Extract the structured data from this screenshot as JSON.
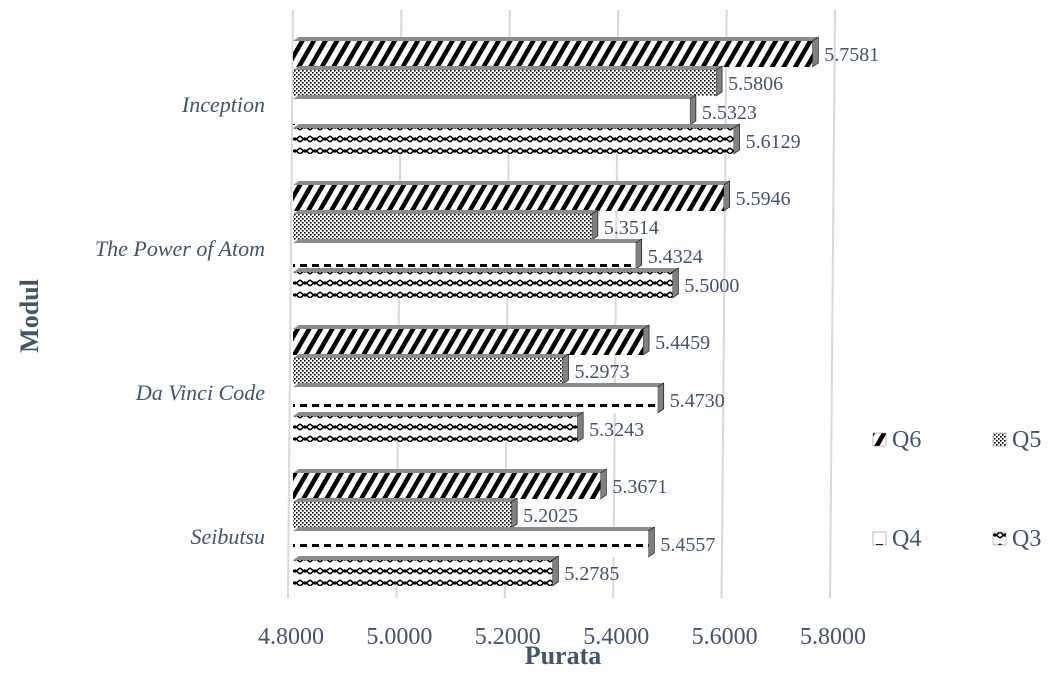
{
  "chart_data": {
    "type": "bar",
    "orientation": "horizontal",
    "categories": [
      "Inception",
      "The Power of Atom",
      "Da Vinci Code",
      "Seibutsu"
    ],
    "series": [
      {
        "name": "Q6",
        "values": [
          5.7581,
          5.5946,
          5.4459,
          5.3671
        ]
      },
      {
        "name": "Q5",
        "values": [
          5.5806,
          5.3514,
          5.2973,
          5.2025
        ]
      },
      {
        "name": "Q4",
        "values": [
          5.5323,
          5.4324,
          5.473,
          5.4557
        ]
      },
      {
        "name": "Q3",
        "values": [
          5.6129,
          5.5,
          5.3243,
          5.2785
        ]
      }
    ],
    "data_labels": [
      [
        "5.7581",
        "5.5806",
        "5.5323",
        "5.6129"
      ],
      [
        "5.5946",
        "5.3514",
        "5.4324",
        "5.5000"
      ],
      [
        "5.4459",
        "5.2973",
        "5.4730",
        "5.3243"
      ],
      [
        "5.3671",
        "5.2025",
        "5.4557",
        "5.2785"
      ]
    ],
    "xlim": [
      4.8,
      5.8
    ],
    "xticks": [
      "4.8000",
      "5.0000",
      "5.2000",
      "5.4000",
      "5.6000",
      "5.8000"
    ],
    "xlabel": "Purata",
    "ylabel": "Modul",
    "grid": true,
    "legend_position": "right",
    "colors": {
      "text": "#44546A",
      "grid": "#D9D9D9",
      "bar": "#000000"
    }
  }
}
